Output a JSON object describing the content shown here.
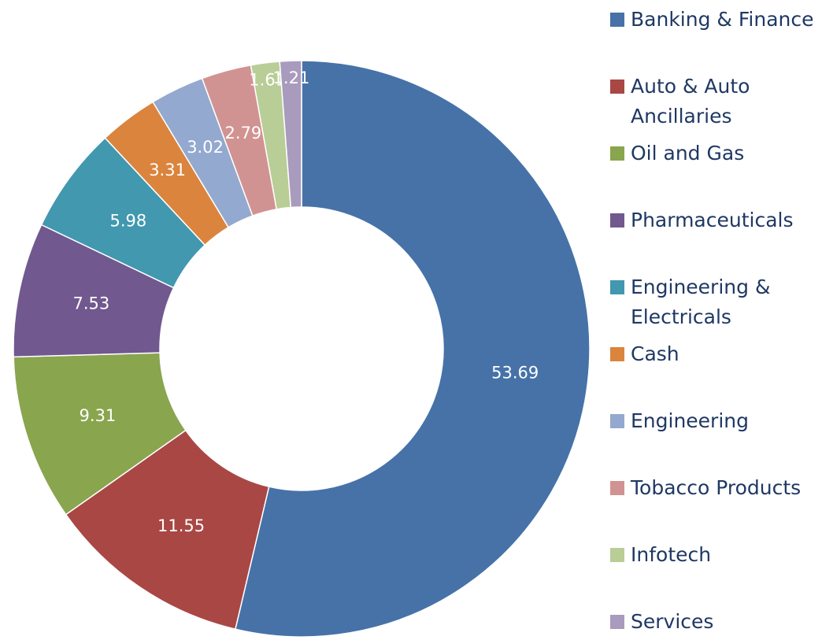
{
  "chart_data": {
    "type": "donut",
    "categories": [
      "Banking & Finance",
      "Auto & Auto Ancillaries",
      "Oil and Gas",
      "Pharmaceuticals",
      "Engineering & Electricals",
      "Cash",
      "Engineering",
      "Tobacco Products",
      "Infotech",
      "Services"
    ],
    "values": [
      53.69,
      11.55,
      9.31,
      7.53,
      5.98,
      3.31,
      3.02,
      2.79,
      1.61,
      1.21
    ],
    "colors": [
      "#4672a8",
      "#a94744",
      "#89a54e",
      "#71588f",
      "#4198af",
      "#db843d",
      "#93a9cf",
      "#d19392",
      "#b9cd96",
      "#a99bbd"
    ],
    "legend": "right"
  }
}
